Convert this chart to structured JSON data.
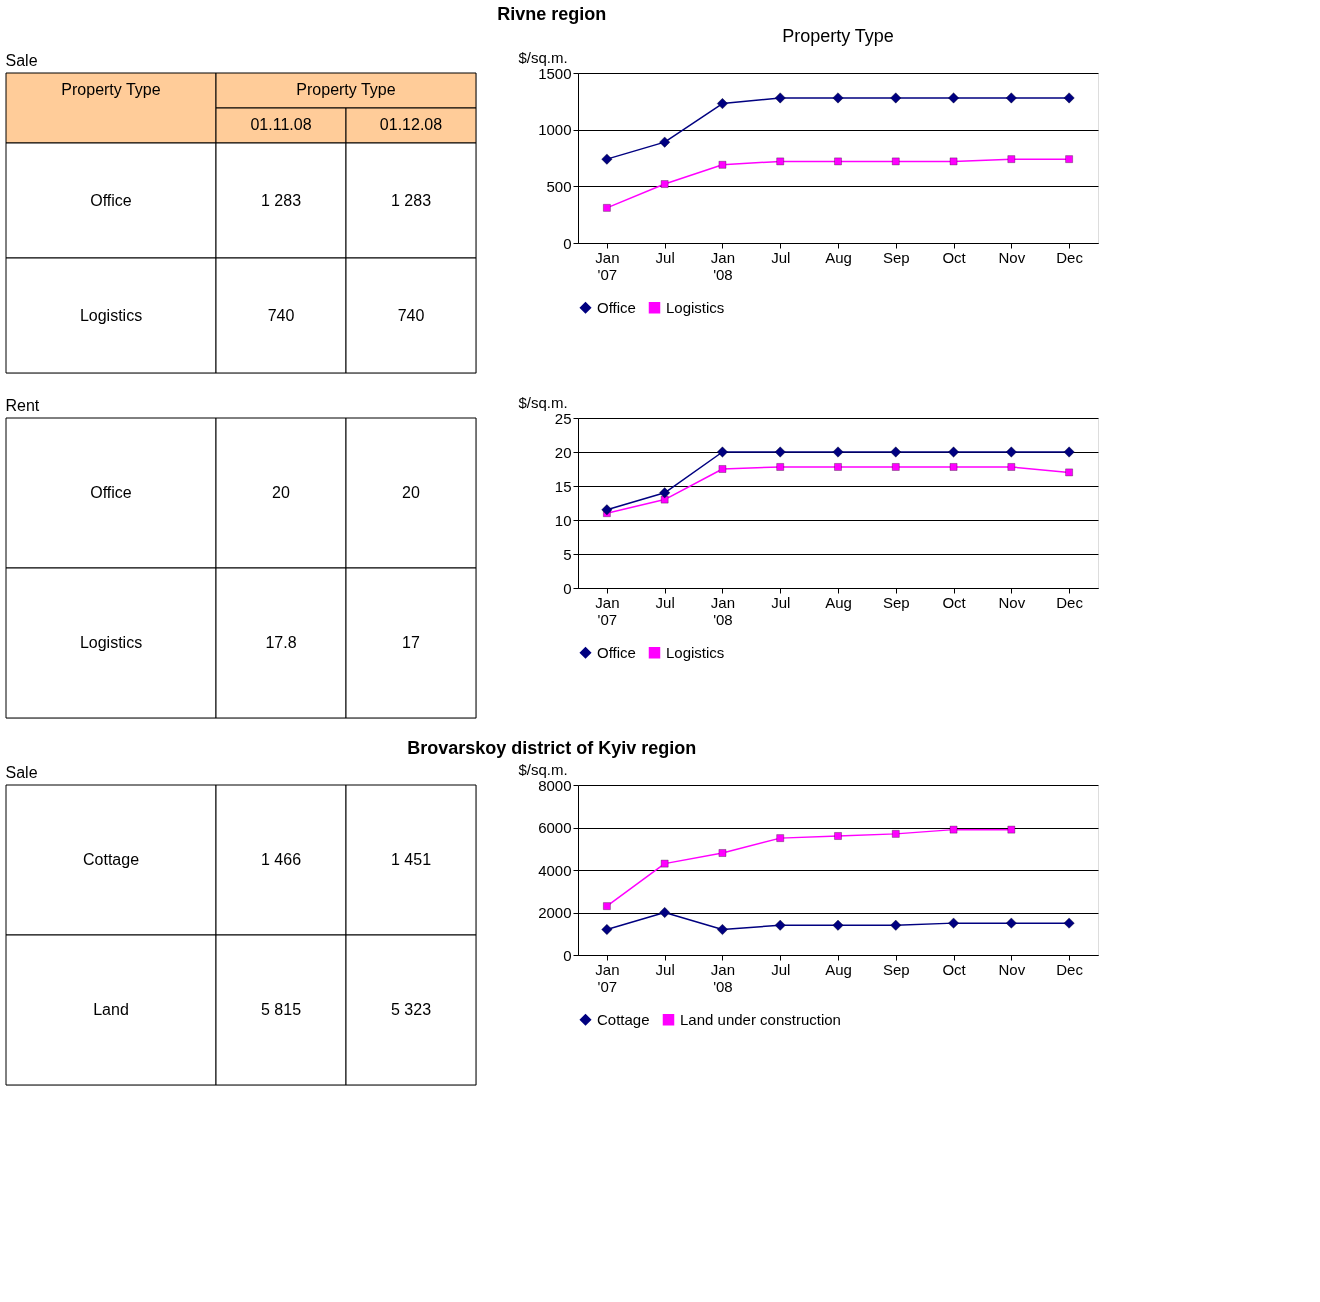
{
  "chart_data": [
    {
      "type": "other",
      "title": "Rivne region",
      "subtitle": "Sale",
      "ylabel": "Property Type",
      "xlabel": "Property Type",
      "categories": [
        "01.11.08",
        "01.12.08"
      ],
      "y_categories": [
        "Office",
        "Logistics"
      ],
      "cell_labels": [
        [
          "1 283",
          "1 283"
        ],
        [
          "740",
          "740"
        ]
      ]
    },
    {
      "type": "line",
      "title": "Property Type",
      "ylabel": "$/sq.m.",
      "categories": [
        "Jan '07",
        "Jul",
        "Jan '08",
        "Jul",
        "Aug",
        "Sep",
        "Oct",
        "Nov",
        "Dec"
      ],
      "ylim": [
        0,
        1500
      ],
      "yticks": [
        0,
        500,
        1000,
        1500
      ],
      "grid": "y",
      "legend": "bottom",
      "series": [
        {
          "name": "Office",
          "color": "#000080",
          "marker": "diamond",
          "values": [
            740,
            890,
            1230,
            1280,
            1280,
            1280,
            1280,
            1280,
            1280
          ]
        },
        {
          "name": "Logistics",
          "color": "#ff00ff",
          "marker": "square",
          "values": [
            310,
            520,
            690,
            720,
            720,
            720,
            720,
            740,
            740
          ]
        }
      ]
    },
    {
      "type": "other",
      "subtitle": "Rent",
      "y_categories": [
        "Office",
        "Logistics"
      ],
      "cell_labels": [
        [
          "20",
          "20"
        ],
        [
          "17.8",
          "17"
        ]
      ]
    },
    {
      "type": "line",
      "ylabel": "$/sq.m.",
      "categories": [
        "Jan '07",
        "Jul",
        "Jan '08",
        "Jul",
        "Aug",
        "Sep",
        "Oct",
        "Nov",
        "Dec"
      ],
      "ylim": [
        0,
        25
      ],
      "yticks": [
        0,
        5,
        10,
        15,
        20,
        25
      ],
      "grid": "y",
      "legend": "bottom",
      "series": [
        {
          "name": "Office",
          "color": "#000080",
          "marker": "diamond",
          "values": [
            11.5,
            14,
            20,
            20,
            20,
            20,
            20,
            20,
            20
          ]
        },
        {
          "name": "Logistics",
          "color": "#ff00ff",
          "marker": "square",
          "values": [
            11,
            13,
            17.5,
            17.8,
            17.8,
            17.8,
            17.8,
            17.8,
            17
          ]
        }
      ]
    },
    {
      "type": "other",
      "title": "Brovarskoy district of Kyiv region",
      "subtitle": "Sale",
      "y_categories": [
        "Cottage",
        "Land"
      ],
      "cell_labels": [
        [
          "1 466",
          "1 451"
        ],
        [
          "5 815",
          "5 323"
        ]
      ]
    },
    {
      "type": "line",
      "ylabel": "$/sq.m.",
      "categories": [
        "Jan '07",
        "Jul",
        "Jan '08",
        "Jul",
        "Aug",
        "Sep",
        "Oct",
        "Nov",
        "Dec"
      ],
      "ylim": [
        0,
        8000
      ],
      "yticks": [
        0,
        2000,
        4000,
        6000,
        8000
      ],
      "grid": "y",
      "legend": "bottom",
      "series": [
        {
          "name": "Cottage",
          "color": "#000080",
          "marker": "diamond",
          "values": [
            1200,
            2000,
            1200,
            1400,
            1400,
            1400,
            1500,
            1500,
            1500
          ]
        },
        {
          "name": "Land under construction",
          "color": "#ff00ff",
          "marker": "square",
          "values": [
            2300,
            4300,
            4800,
            5500,
            5600,
            5700,
            5900,
            5900,
            null
          ]
        }
      ]
    }
  ]
}
